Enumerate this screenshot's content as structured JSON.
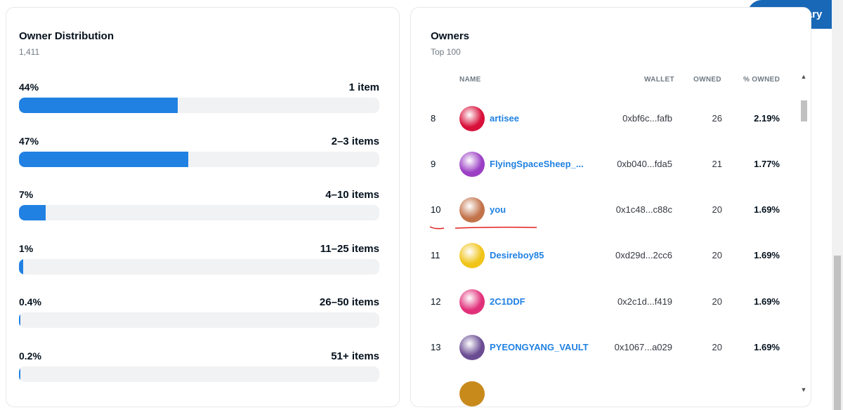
{
  "summary_button": {
    "label": "Summary",
    "icon": "chart-pie-icon"
  },
  "distribution": {
    "title": "Owner Distribution",
    "total": "1,411",
    "rows": [
      {
        "pct": "44%",
        "label": "1 item",
        "fill": 0.44
      },
      {
        "pct": "47%",
        "label": "2–3 items",
        "fill": 0.47
      },
      {
        "pct": "7%",
        "label": "4–10 items",
        "fill": 0.075
      },
      {
        "pct": "1%",
        "label": "11–25 items",
        "fill": 0.012
      },
      {
        "pct": "0.4%",
        "label": "26–50 items",
        "fill": 0.004
      },
      {
        "pct": "0.2%",
        "label": "51+ items",
        "fill": 0.002
      }
    ],
    "bar_color": "#2081e2"
  },
  "owners": {
    "title": "Owners",
    "subtitle": "Top 100",
    "columns": {
      "name": "NAME",
      "wallet": "WALLET",
      "owned": "OWNED",
      "pct_owned": "% OWNED"
    },
    "rows": [
      {
        "rank": "8",
        "name": "artisee",
        "wallet": "0xbf6c...fafb",
        "owned": "26",
        "pct": "2.19%",
        "avatar_color": "#d8103a"
      },
      {
        "rank": "9",
        "name": "FlyingSpaceSheep_...",
        "wallet": "0xb040...fda5",
        "owned": "21",
        "pct": "1.77%",
        "avatar_color": "#9b3fc4"
      },
      {
        "rank": "10",
        "name": "you",
        "wallet": "0x1c48...c88c",
        "owned": "20",
        "pct": "1.69%",
        "avatar_color": "#c2734a"
      },
      {
        "rank": "11",
        "name": "Desireboy85",
        "wallet": "0xd29d...2cc6",
        "owned": "20",
        "pct": "1.69%",
        "avatar_color": "#f0c419"
      },
      {
        "rank": "12",
        "name": "2C1DDF",
        "wallet": "0x2c1d...f419",
        "owned": "20",
        "pct": "1.69%",
        "avatar_color": "#e1307a"
      },
      {
        "rank": "13",
        "name": "PYEONGYANG_VAULT",
        "wallet": "0x1067...a029",
        "owned": "20",
        "pct": "1.69%",
        "avatar_color": "#6a4c93"
      }
    ],
    "accent": "#2081e2"
  }
}
